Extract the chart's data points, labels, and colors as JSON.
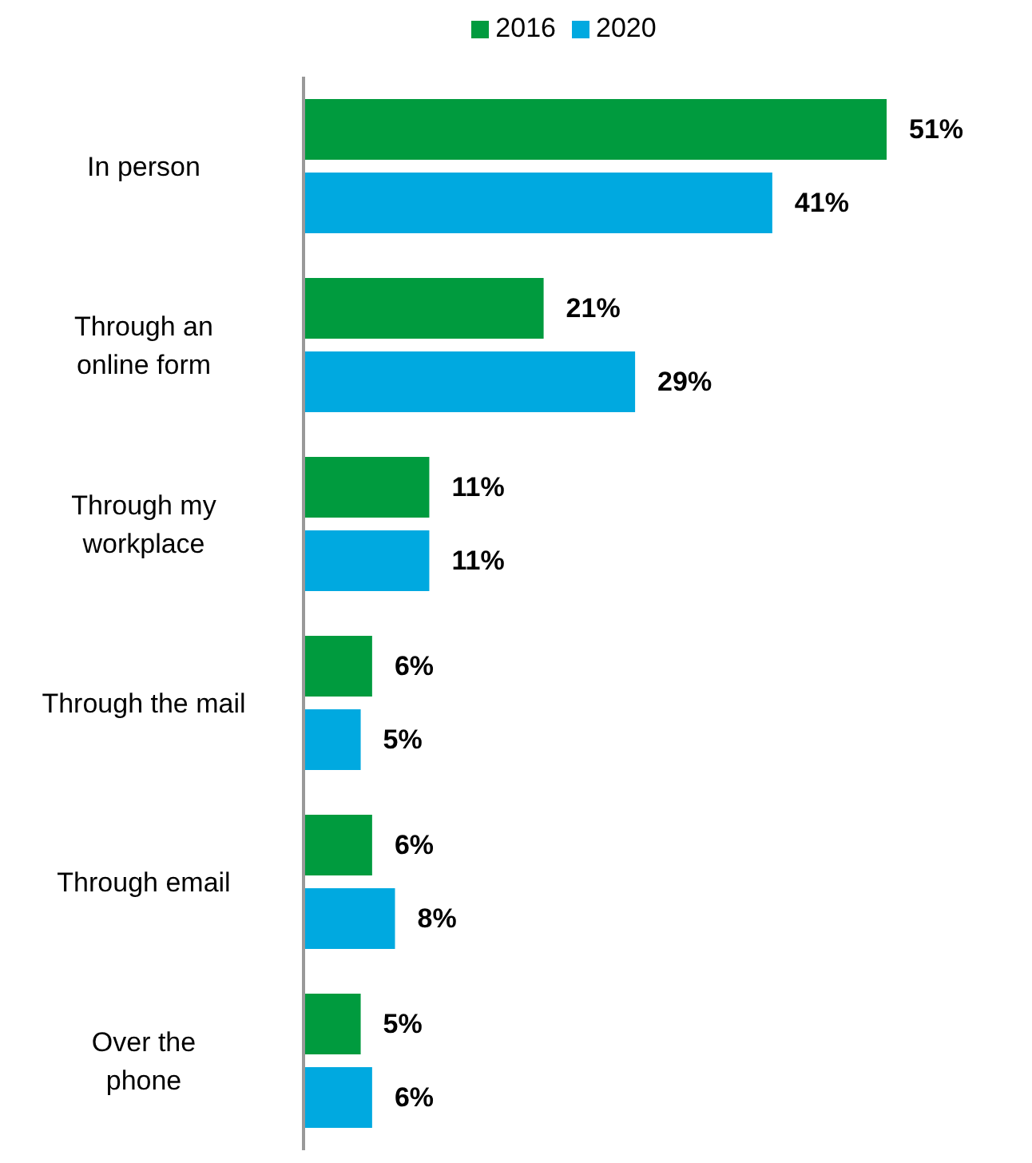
{
  "chart_data": {
    "type": "bar",
    "orientation": "horizontal",
    "categories": [
      "In person",
      "Through an\nonline form",
      "Through my\nworkplace",
      "Through the mail",
      "Through email",
      "Over the\nphone"
    ],
    "series": [
      {
        "name": "2016",
        "color": "#009b3e",
        "values": [
          51,
          21,
          11,
          6,
          6,
          5
        ],
        "value_labels": [
          "51%",
          "21%",
          "11%",
          "6%",
          "6%",
          "5%"
        ]
      },
      {
        "name": "2020",
        "color": "#00a9e0",
        "values": [
          41,
          29,
          11,
          5,
          8,
          6
        ],
        "value_labels": [
          "41%",
          "29%",
          "11%",
          "5%",
          "8%",
          "6%"
        ]
      }
    ],
    "legend": "top",
    "grid": false
  }
}
